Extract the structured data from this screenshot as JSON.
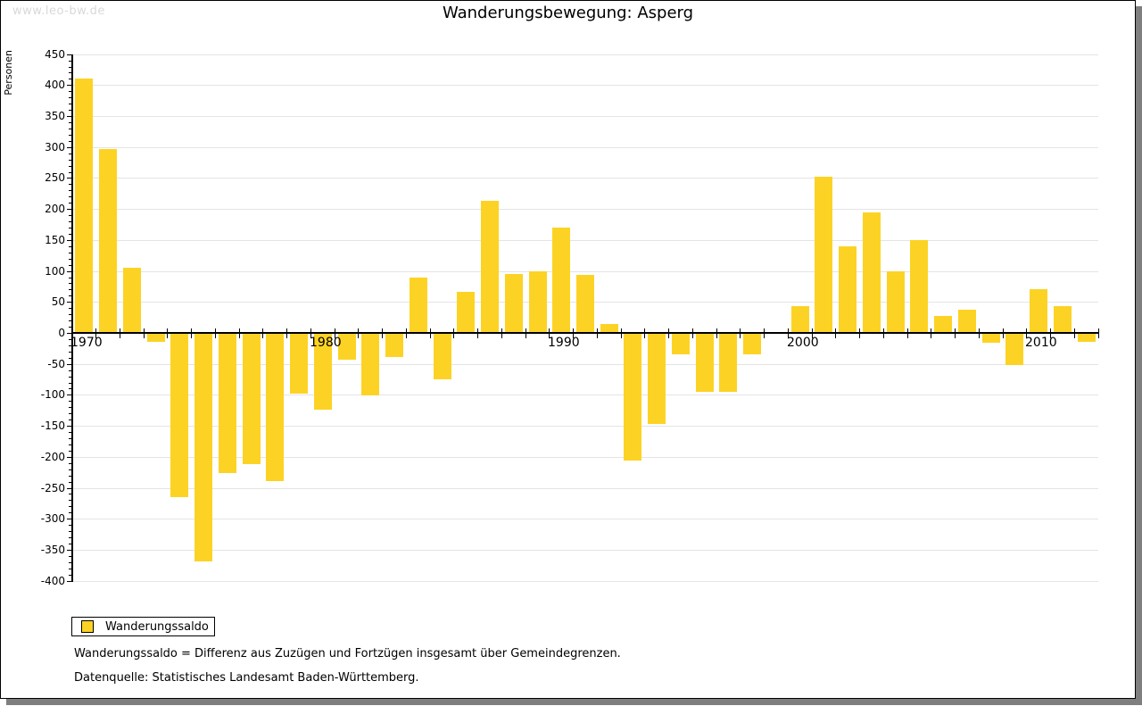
{
  "watermark": "www.leo-bw.de",
  "title": "Wanderungsbewegung: Asperg",
  "y_axis_title": "Personen",
  "legend": {
    "label": "Wanderungssaldo"
  },
  "footnotes": {
    "line1": "Wanderungssaldo = Differenz aus Zuzügen und Fortzügen insgesamt über Gemeindegrenzen.",
    "line2": "Datenquelle: Statistisches Landesamt Baden-Württemberg."
  },
  "colors": {
    "bar": "#fcd324",
    "grid": "#e4e4e4",
    "axis": "#000000",
    "watermark": "#d9d9d9",
    "frame_shadow": "#7f7f7f"
  },
  "chart_data": {
    "type": "bar",
    "title": "Wanderungsbewegung: Asperg",
    "ylabel": "Personen",
    "ylim": [
      -400,
      450
    ],
    "y_tick_step": 50,
    "y_minor_tick_step": 10,
    "grid": "horizontal",
    "legend_position": "bottom-left",
    "series_name": "Wanderungssaldo",
    "categories": [
      1970,
      1971,
      1972,
      1973,
      1974,
      1975,
      1976,
      1977,
      1978,
      1979,
      1980,
      1981,
      1982,
      1983,
      1984,
      1985,
      1986,
      1987,
      1988,
      1989,
      1990,
      1991,
      1992,
      1993,
      1994,
      1995,
      1996,
      1997,
      1998,
      1999,
      2000,
      2001,
      2002,
      2003,
      2004,
      2005,
      2006,
      2007,
      2008,
      2009,
      2010,
      2011,
      2012
    ],
    "values": [
      410,
      297,
      105,
      -13,
      -263,
      -368,
      -225,
      -210,
      -237,
      -97,
      -123,
      -42,
      -100,
      -37,
      90,
      -73,
      66,
      213,
      95,
      100,
      170,
      93,
      15,
      -205,
      -145,
      -33,
      -93,
      -93,
      -33,
      0,
      43,
      252,
      140,
      195,
      100,
      150,
      28,
      38,
      -15,
      -50,
      70,
      43,
      -13
    ],
    "x_tick_labels": [
      1970,
      1980,
      1990,
      2000,
      2010
    ]
  }
}
